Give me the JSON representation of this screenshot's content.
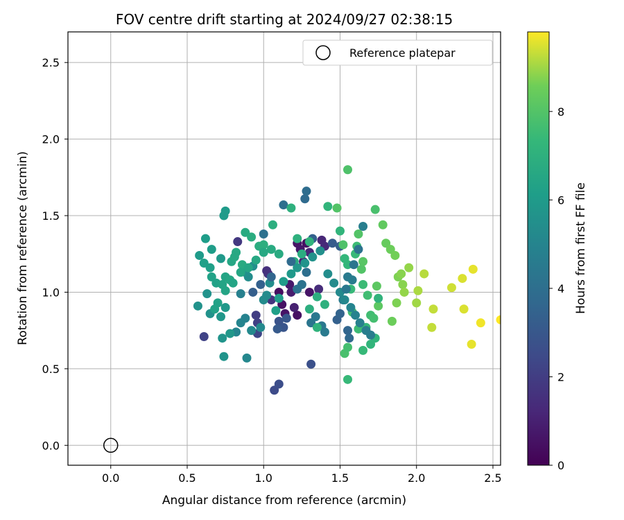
{
  "chart_data": {
    "type": "scatter",
    "title": "FOV centre drift starting at 2024/09/27 02:38:15",
    "xlabel": "Angular distance from reference (arcmin)",
    "ylabel": "Rotation from reference (arcmin)",
    "xlim": [
      -0.28,
      2.55
    ],
    "ylim": [
      -0.13,
      2.7
    ],
    "xticks": [
      "0.0",
      "0.5",
      "1.0",
      "1.5",
      "2.0",
      "2.5"
    ],
    "yticks": [
      "0.0",
      "0.5",
      "1.0",
      "1.5",
      "2.0",
      "2.5"
    ],
    "grid": true,
    "legend_location": "upper right",
    "reference": {
      "label": "Reference platepar",
      "x": 0.0,
      "y": 0.0
    },
    "colorbar": {
      "label": "Hours from first FF file",
      "range": [
        0,
        9.8
      ],
      "ticks": [
        "0",
        "2",
        "4",
        "6",
        "8"
      ],
      "colormap": "viridis"
    },
    "series": [
      {
        "color_variable": "hours",
        "points": [
          [
            1.1,
            1.0,
            0.4
          ],
          [
            1.12,
            0.92,
            0.5
          ],
          [
            1.14,
            0.86,
            0.6
          ],
          [
            1.22,
            1.32,
            0.6
          ],
          [
            1.24,
            1.28,
            0.7
          ],
          [
            1.28,
            1.32,
            0.5
          ],
          [
            1.3,
            1.0,
            0.6
          ],
          [
            1.22,
            0.85,
            0.5
          ],
          [
            1.17,
            1.05,
            0.8
          ],
          [
            1.18,
            1.0,
            0.9
          ],
          [
            1.2,
            0.9,
            1.0
          ],
          [
            1.26,
            1.2,
            1.1
          ],
          [
            1.3,
            1.26,
            1.2
          ],
          [
            1.38,
            1.34,
            1.2
          ],
          [
            1.4,
            1.3,
            1.3
          ],
          [
            1.36,
            1.02,
            1.4
          ],
          [
            1.02,
            1.14,
            1.5
          ],
          [
            1.03,
            1.12,
            1.6
          ],
          [
            1.05,
            0.95,
            1.7
          ],
          [
            0.83,
            1.33,
            1.8
          ],
          [
            0.95,
            0.85,
            2.0
          ],
          [
            0.96,
            0.8,
            2.1
          ],
          [
            0.61,
            0.71,
            2.2
          ],
          [
            0.96,
            0.73,
            2.3
          ],
          [
            1.07,
            0.36,
            2.5
          ],
          [
            1.1,
            0.4,
            2.6
          ],
          [
            1.31,
            0.53,
            2.7
          ],
          [
            1.1,
            0.81,
            2.8
          ],
          [
            1.13,
            0.77,
            2.9
          ],
          [
            1.15,
            0.83,
            3.0
          ],
          [
            1.09,
            0.76,
            3.1
          ],
          [
            1.45,
            1.32,
            3.2
          ],
          [
            1.5,
            1.3,
            3.3
          ],
          [
            1.32,
            1.35,
            3.4
          ],
          [
            1.48,
            0.82,
            3.4
          ],
          [
            1.5,
            0.86,
            3.5
          ],
          [
            1.55,
            0.75,
            3.6
          ],
          [
            1.56,
            0.7,
            3.7
          ],
          [
            1.27,
            1.61,
            3.8
          ],
          [
            1.28,
            1.66,
            3.9
          ],
          [
            1.13,
            1.57,
            4.0
          ],
          [
            1.0,
            1.38,
            4.1
          ],
          [
            1.22,
            1.02,
            4.2
          ],
          [
            1.25,
            1.05,
            4.2
          ],
          [
            1.31,
            0.8,
            4.3
          ],
          [
            1.34,
            0.84,
            4.4
          ],
          [
            1.38,
            0.78,
            4.4
          ],
          [
            1.4,
            0.74,
            4.5
          ],
          [
            1.55,
            1.1,
            4.5
          ],
          [
            1.58,
            1.08,
            4.6
          ],
          [
            1.52,
            0.95,
            4.6
          ],
          [
            1.65,
            1.43,
            4.7
          ],
          [
            0.85,
            0.99,
            4.8
          ],
          [
            0.88,
            0.83,
            4.9
          ],
          [
            0.85,
            0.8,
            5.0
          ],
          [
            0.82,
            0.74,
            5.0
          ],
          [
            0.89,
            0.57,
            5.1
          ],
          [
            0.92,
            0.75,
            5.2
          ],
          [
            0.98,
            0.77,
            5.2
          ],
          [
            1.0,
            0.95,
            5.3
          ],
          [
            1.02,
            0.98,
            5.3
          ],
          [
            1.04,
            1.06,
            5.4
          ],
          [
            0.9,
            1.1,
            5.4
          ],
          [
            0.88,
            1.13,
            5.5
          ],
          [
            0.93,
            1.17,
            5.5
          ],
          [
            0.57,
            0.91,
            5.6
          ],
          [
            0.63,
            0.99,
            5.6
          ],
          [
            0.65,
            0.86,
            5.6
          ],
          [
            0.73,
            0.7,
            5.7
          ],
          [
            0.74,
            0.58,
            5.7
          ],
          [
            0.78,
            0.73,
            5.8
          ],
          [
            0.72,
            0.84,
            5.8
          ],
          [
            0.75,
            0.9,
            5.9
          ],
          [
            0.72,
            1.22,
            5.9
          ],
          [
            0.74,
            1.5,
            6.0
          ],
          [
            0.75,
            1.53,
            6.0
          ],
          [
            0.58,
            1.24,
            6.0
          ],
          [
            0.62,
            1.35,
            6.1
          ],
          [
            0.66,
            1.28,
            6.1
          ],
          [
            0.61,
            1.19,
            6.2
          ],
          [
            0.65,
            1.16,
            6.2
          ],
          [
            0.66,
            1.1,
            6.3
          ],
          [
            0.69,
            1.06,
            6.3
          ],
          [
            0.73,
            1.05,
            6.4
          ],
          [
            0.75,
            1.1,
            6.4
          ],
          [
            0.78,
            1.08,
            6.5
          ],
          [
            0.79,
            1.2,
            6.5
          ],
          [
            0.81,
            1.23,
            6.6
          ],
          [
            0.82,
            1.26,
            6.6
          ],
          [
            0.86,
            1.18,
            6.7
          ],
          [
            0.88,
            1.39,
            6.7
          ],
          [
            0.92,
            1.36,
            6.8
          ],
          [
            0.97,
            1.3,
            6.8
          ],
          [
            1.0,
            1.31,
            6.9
          ],
          [
            1.06,
            1.44,
            6.9
          ],
          [
            1.18,
            1.55,
            7.0
          ],
          [
            1.22,
            1.35,
            7.0
          ],
          [
            1.3,
            1.33,
            7.1
          ],
          [
            1.35,
            0.77,
            7.1
          ],
          [
            1.42,
            1.56,
            7.2
          ],
          [
            1.5,
            1.4,
            7.2
          ],
          [
            1.53,
            1.22,
            7.3
          ],
          [
            1.55,
            1.18,
            7.3
          ],
          [
            1.57,
            1.02,
            7.4
          ],
          [
            1.6,
            1.25,
            7.4
          ],
          [
            1.61,
            1.3,
            7.5
          ],
          [
            1.65,
            1.05,
            7.5
          ],
          [
            1.68,
            0.98,
            7.6
          ],
          [
            1.7,
            0.85,
            7.6
          ],
          [
            1.72,
            0.83,
            7.7
          ],
          [
            1.73,
            1.54,
            7.8
          ],
          [
            1.55,
            0.43,
            7.4
          ],
          [
            1.55,
            1.8,
            7.9
          ],
          [
            1.62,
            1.38,
            8.0
          ],
          [
            1.64,
            1.15,
            8.0
          ],
          [
            1.65,
            1.2,
            8.1
          ],
          [
            1.74,
            1.04,
            8.2
          ],
          [
            1.75,
            0.91,
            8.2
          ],
          [
            1.78,
            1.44,
            8.3
          ],
          [
            1.8,
            1.32,
            8.4
          ],
          [
            1.83,
            1.28,
            8.5
          ],
          [
            1.84,
            0.81,
            8.5
          ],
          [
            1.86,
            1.24,
            8.6
          ],
          [
            1.87,
            0.93,
            8.7
          ],
          [
            1.88,
            1.1,
            8.7
          ],
          [
            1.9,
            1.12,
            8.8
          ],
          [
            1.91,
            1.05,
            8.8
          ],
          [
            1.92,
            1.0,
            8.9
          ],
          [
            1.95,
            1.16,
            8.9
          ],
          [
            2.0,
            0.93,
            9.0
          ],
          [
            2.01,
            1.01,
            9.1
          ],
          [
            2.05,
            1.12,
            9.2
          ],
          [
            2.1,
            0.77,
            9.3
          ],
          [
            2.11,
            0.89,
            9.3
          ],
          [
            2.23,
            1.03,
            9.4
          ],
          [
            2.3,
            1.09,
            9.5
          ],
          [
            2.31,
            0.89,
            9.5
          ],
          [
            2.36,
            0.66,
            9.6
          ],
          [
            2.37,
            1.15,
            9.6
          ],
          [
            2.42,
            0.8,
            9.7
          ],
          [
            2.55,
            0.82,
            9.8
          ],
          [
            1.48,
            1.55,
            8.0
          ],
          [
            1.52,
            1.31,
            7.9
          ],
          [
            1.53,
            0.6,
            7.8
          ],
          [
            1.55,
            0.64,
            7.7
          ],
          [
            1.58,
            0.87,
            7.6
          ],
          [
            1.62,
            0.76,
            7.5
          ],
          [
            1.65,
            0.62,
            7.4
          ],
          [
            1.67,
            0.77,
            7.3
          ],
          [
            1.7,
            0.66,
            7.2
          ],
          [
            1.73,
            0.7,
            7.2
          ],
          [
            1.75,
            0.96,
            7.1
          ],
          [
            1.4,
            0.92,
            7.0
          ],
          [
            1.35,
            0.97,
            6.9
          ],
          [
            1.3,
            0.89,
            6.9
          ],
          [
            1.25,
            1.25,
            6.8
          ],
          [
            1.2,
            1.2,
            6.8
          ],
          [
            1.1,
            1.25,
            6.7
          ],
          [
            1.05,
            1.28,
            6.7
          ],
          [
            1.0,
            1.26,
            6.6
          ],
          [
            0.95,
            1.21,
            6.6
          ],
          [
            0.9,
            1.16,
            6.5
          ],
          [
            0.85,
            1.13,
            6.5
          ],
          [
            0.8,
            1.06,
            6.4
          ],
          [
            0.75,
            1.01,
            6.4
          ],
          [
            0.7,
            0.93,
            6.3
          ],
          [
            0.68,
            0.89,
            6.3
          ],
          [
            1.08,
            0.88,
            6.2
          ],
          [
            1.1,
            0.96,
            6.1
          ],
          [
            1.13,
            1.07,
            6.0
          ],
          [
            1.18,
            1.12,
            5.9
          ],
          [
            1.22,
            1.16,
            5.8
          ],
          [
            1.27,
            1.19,
            5.7
          ],
          [
            1.32,
            1.23,
            5.6
          ],
          [
            1.37,
            1.27,
            5.5
          ],
          [
            1.42,
            1.12,
            5.4
          ],
          [
            1.46,
            1.06,
            5.3
          ],
          [
            1.5,
            1.0,
            5.2
          ],
          [
            1.53,
            0.95,
            5.1
          ],
          [
            1.57,
            0.9,
            5.0
          ],
          [
            1.6,
            0.85,
            4.9
          ],
          [
            1.63,
            0.8,
            4.8
          ],
          [
            1.67,
            0.75,
            4.7
          ],
          [
            1.7,
            0.72,
            4.6
          ],
          [
            1.54,
            1.02,
            4.4
          ],
          [
            1.59,
            1.18,
            4.3
          ],
          [
            1.62,
            1.28,
            4.2
          ],
          [
            1.28,
            1.13,
            4.0
          ],
          [
            1.18,
            1.2,
            3.8
          ],
          [
            1.05,
            1.1,
            3.6
          ],
          [
            0.98,
            1.05,
            3.4
          ],
          [
            0.93,
            1.0,
            3.3
          ]
        ]
      }
    ]
  }
}
